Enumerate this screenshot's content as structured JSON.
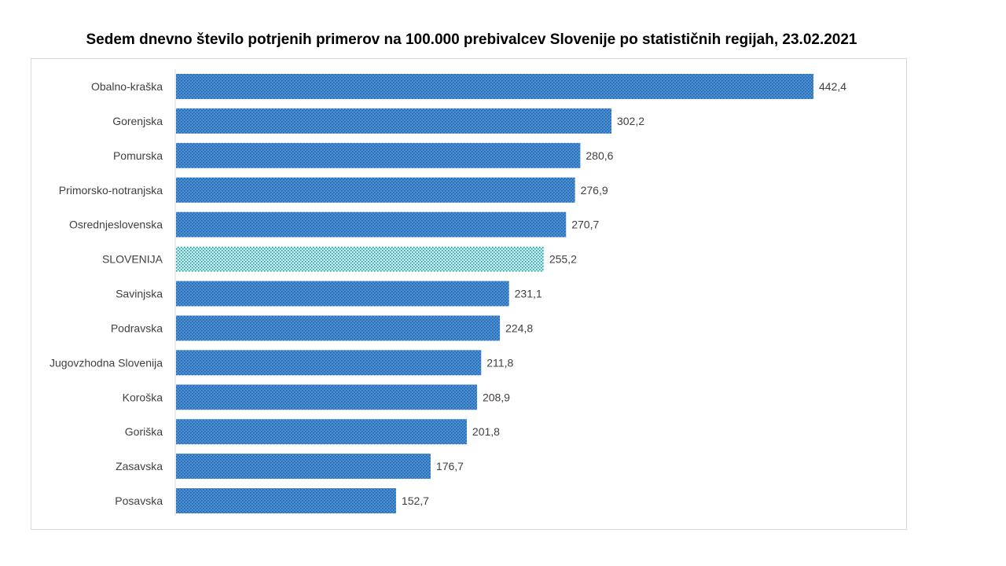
{
  "chart_data": {
    "type": "bar",
    "orientation": "horizontal",
    "title": "Sedem dnevno število potrjenih primerov na 100.000 prebivalcev Slovenije po statističnih regijah, 23.02.2021",
    "categories": [
      "Obalno-kraška",
      "Gorenjska",
      "Pomurska",
      "Primorsko-notranjska",
      "Osrednjeslovenska",
      "SLOVENIJA",
      "Savinjska",
      "Podravska",
      "Jugovzhodna Slovenija",
      "Koroška",
      "Goriška",
      "Zasavska",
      "Posavska"
    ],
    "values": [
      442.4,
      302.2,
      280.6,
      276.9,
      270.7,
      255.2,
      231.1,
      224.8,
      211.8,
      208.9,
      201.8,
      176.7,
      152.7
    ],
    "value_labels": [
      "442,4",
      "302,2",
      "280,6",
      "276,9",
      "270,7",
      "255,2",
      "231,1",
      "224,8",
      "211,8",
      "208,9",
      "201,8",
      "176,7",
      "152,7"
    ],
    "highlight": "SLOVENIJA",
    "xlim": [
      0,
      450
    ],
    "grid": false,
    "colors": {
      "bar": "#4a8fd6",
      "bar_dots": "#1f5f9e",
      "highlight": "#bfeef0",
      "highlight_dots": "#2a8a92"
    }
  }
}
